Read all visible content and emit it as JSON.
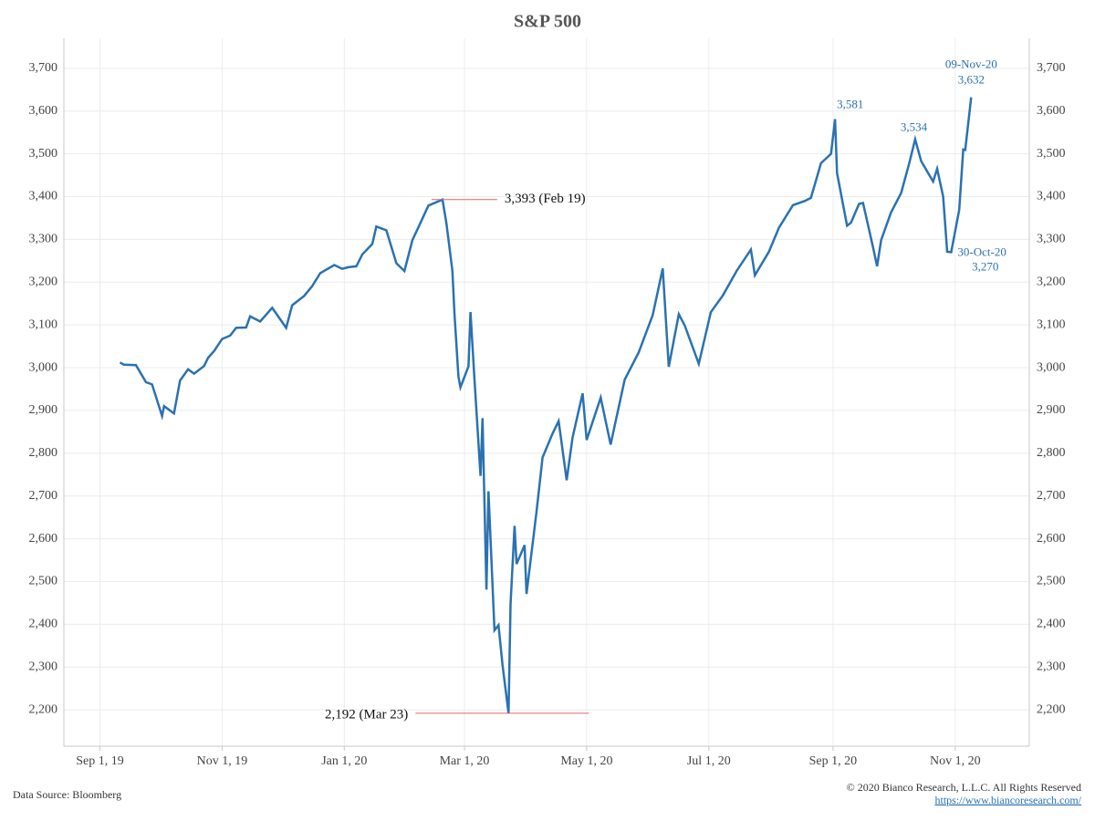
{
  "chart_data": {
    "type": "line",
    "title": "S&P 500",
    "x": [
      "2019-09-11",
      "2019-09-13",
      "2019-09-19",
      "2019-09-24",
      "2019-09-27",
      "2019-10-02",
      "2019-10-03",
      "2019-10-08",
      "2019-10-11",
      "2019-10-15",
      "2019-10-18",
      "2019-10-23",
      "2019-10-25",
      "2019-10-28",
      "2019-11-01",
      "2019-11-05",
      "2019-11-08",
      "2019-11-13",
      "2019-11-15",
      "2019-11-20",
      "2019-11-26",
      "2019-12-03",
      "2019-12-06",
      "2019-12-12",
      "2019-12-16",
      "2019-12-20",
      "2019-12-27",
      "2019-12-31",
      "2020-01-03",
      "2020-01-07",
      "2020-01-10",
      "2020-01-15",
      "2020-01-17",
      "2020-01-22",
      "2020-01-27",
      "2020-01-31",
      "2020-02-04",
      "2020-02-07",
      "2020-02-12",
      "2020-02-19",
      "2020-02-21",
      "2020-02-24",
      "2020-02-25",
      "2020-02-27",
      "2020-02-28",
      "2020-03-03",
      "2020-03-04",
      "2020-03-06",
      "2020-03-09",
      "2020-03-10",
      "2020-03-12",
      "2020-03-13",
      "2020-03-16",
      "2020-03-18",
      "2020-03-20",
      "2020-03-23",
      "2020-03-24",
      "2020-03-26",
      "2020-03-27",
      "2020-03-31",
      "2020-04-01",
      "2020-04-06",
      "2020-04-09",
      "2020-04-14",
      "2020-04-17",
      "2020-04-21",
      "2020-04-24",
      "2020-04-29",
      "2020-05-01",
      "2020-05-08",
      "2020-05-13",
      "2020-05-15",
      "2020-05-20",
      "2020-05-27",
      "2020-06-03",
      "2020-06-08",
      "2020-06-11",
      "2020-06-16",
      "2020-06-19",
      "2020-06-26",
      "2020-07-02",
      "2020-07-08",
      "2020-07-15",
      "2020-07-22",
      "2020-07-24",
      "2020-07-31",
      "2020-08-05",
      "2020-08-12",
      "2020-08-18",
      "2020-08-21",
      "2020-08-26",
      "2020-08-31",
      "2020-09-02",
      "2020-09-03",
      "2020-09-08",
      "2020-09-10",
      "2020-09-14",
      "2020-09-16",
      "2020-09-21",
      "2020-09-23",
      "2020-09-25",
      "2020-09-30",
      "2020-10-05",
      "2020-10-09",
      "2020-10-12",
      "2020-10-15",
      "2020-10-21",
      "2020-10-23",
      "2020-10-26",
      "2020-10-28",
      "2020-10-30",
      "2020-11-03",
      "2020-11-05",
      "2020-11-06",
      "2020-11-09"
    ],
    "series": [
      {
        "name": "S&P 500",
        "color": "#2a72b0",
        "values": [
          3012,
          3007,
          3006,
          2966,
          2961,
          2887,
          2910,
          2893,
          2970,
          2996,
          2986,
          3004,
          3023,
          3039,
          3067,
          3075,
          3093,
          3094,
          3120,
          3108,
          3140,
          3093,
          3146,
          3168,
          3191,
          3221,
          3240,
          3231,
          3235,
          3237,
          3265,
          3289,
          3330,
          3321,
          3244,
          3226,
          3298,
          3328,
          3379,
          3393,
          3338,
          3226,
          3128,
          2979,
          2954,
          3003,
          3130,
          2972,
          2747,
          2882,
          2481,
          2711,
          2386,
          2398,
          2305,
          2192,
          2447,
          2630,
          2541,
          2585,
          2471,
          2664,
          2790,
          2846,
          2875,
          2737,
          2837,
          2940,
          2831,
          2930,
          2820,
          2864,
          2972,
          3036,
          3123,
          3232,
          3002,
          3125,
          3098,
          3009,
          3130,
          3169,
          3227,
          3276,
          3216,
          3271,
          3327,
          3380,
          3390,
          3397,
          3478,
          3500,
          3581,
          3455,
          3332,
          3339,
          3383,
          3385,
          3281,
          3237,
          3298,
          3363,
          3408,
          3477,
          3534,
          3483,
          3435,
          3465,
          3400,
          3271,
          3270,
          3369,
          3510,
          3509,
          3632
        ]
      }
    ],
    "xlim": [
      "2019-08-14",
      "2020-12-08"
    ],
    "xticks": [
      {
        "value": "2019-09-01",
        "label": "Sep 1, 19"
      },
      {
        "value": "2019-11-01",
        "label": "Nov 1, 19"
      },
      {
        "value": "2020-01-01",
        "label": "Jan 1, 20"
      },
      {
        "value": "2020-03-01",
        "label": "Mar 1, 20"
      },
      {
        "value": "2020-05-01",
        "label": "May 1, 20"
      },
      {
        "value": "2020-07-01",
        "label": "Jul 1, 20"
      },
      {
        "value": "2020-09-01",
        "label": "Sep 1, 20"
      },
      {
        "value": "2020-11-01",
        "label": "Nov 1, 20"
      }
    ],
    "ylim": [
      2115,
      3770
    ],
    "yticks": [
      {
        "value": 2200,
        "label": "2,200"
      },
      {
        "value": 2300,
        "label": "2,300"
      },
      {
        "value": 2400,
        "label": "2,400"
      },
      {
        "value": 2500,
        "label": "2,500"
      },
      {
        "value": 2600,
        "label": "2,600"
      },
      {
        "value": 2700,
        "label": "2,700"
      },
      {
        "value": 2800,
        "label": "2,800"
      },
      {
        "value": 2900,
        "label": "2,900"
      },
      {
        "value": 3000,
        "label": "3,000"
      },
      {
        "value": 3100,
        "label": "3,100"
      },
      {
        "value": 3200,
        "label": "3,200"
      },
      {
        "value": 3300,
        "label": "3,300"
      },
      {
        "value": 3400,
        "label": "3,400"
      },
      {
        "value": 3500,
        "label": "3,500"
      },
      {
        "value": 3600,
        "label": "3,600"
      },
      {
        "value": 3700,
        "label": "3,700"
      }
    ],
    "grid": true,
    "annotations": [
      {
        "text": "3,393 (Feb 19)",
        "x": "2020-02-19",
        "y": 3393
      },
      {
        "text": "2,192 (Mar 23)",
        "x": "2020-03-23",
        "y": 2192
      },
      {
        "text": "3,581",
        "x": "2020-09-02",
        "y": 3581
      },
      {
        "text": "3,534",
        "x": "2020-10-12",
        "y": 3534
      },
      {
        "text": "09-Nov-20",
        "x": "2020-11-09",
        "y": 3632
      },
      {
        "text": "3,632",
        "x": "2020-11-09",
        "y": 3632
      },
      {
        "text": "30-Oct-20",
        "x": "2020-10-30",
        "y": 3270
      },
      {
        "text": "3,270",
        "x": "2020-10-30",
        "y": 3270
      }
    ],
    "source": "Data Source: Bloomberg",
    "copyright": "© 2020 Bianco Research, L.L.C. All Rights Reserved",
    "url": "https://www.biancoresearch.com/"
  }
}
